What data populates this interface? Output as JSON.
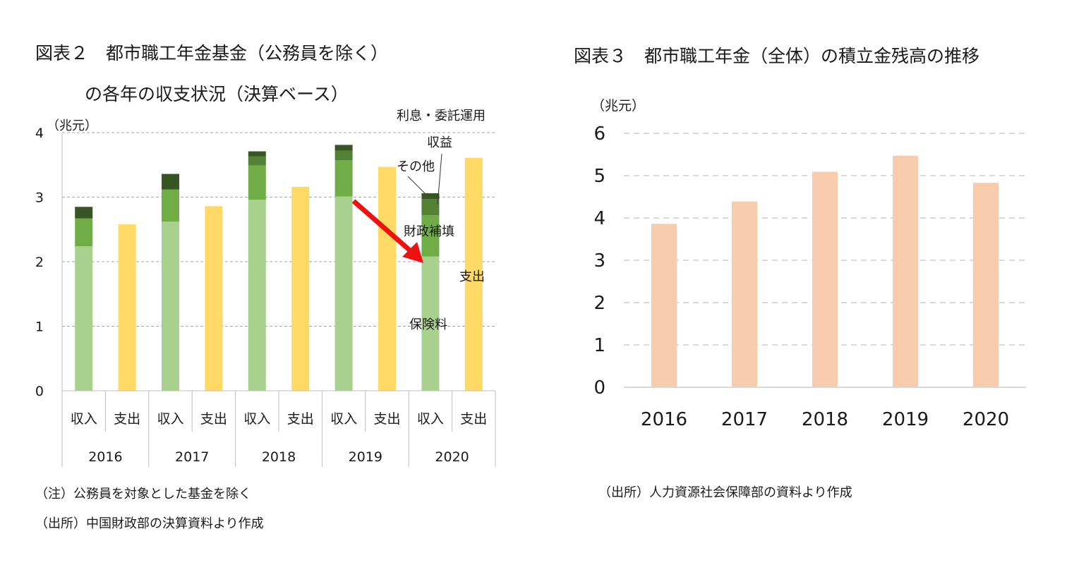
{
  "figure2": {
    "title_line1": "図表２　都市職工年金基金（公務員を除く）",
    "title_line2": "の各年の収支状況（決算ベース）",
    "notes": [
      "（注）公務員を対象とした基金を除く",
      "（出所）中国財政部の決算資料より作成"
    ],
    "annotations": {
      "interest": "利息・委託運用",
      "interest2": "収益",
      "other": "その他",
      "fiscal": "財政補填",
      "premium": "保険料",
      "expense": "支出"
    },
    "colors": {
      "premium": "#a9d18e",
      "fiscal": "#70ad47",
      "other": "#548235",
      "interest": "#375623",
      "expense": "#ffd966",
      "arrow": "#ee1111"
    }
  },
  "figure3": {
    "title": "図表３　都市職工年金（全体）の積立金残高の推移",
    "notes": [
      "（出所）人力資源社会保障部の資料より作成"
    ],
    "colors": {
      "bar": "#f8cbad"
    }
  },
  "chart_data": [
    {
      "type": "bar",
      "stacked": true,
      "title": "図表２　都市職工年金基金（公務員を除く）の各年の収支状況（決算ベース）",
      "ylabel": "（兆元）",
      "ylim": [
        0,
        4
      ],
      "yticks": [
        0,
        1,
        2,
        3,
        4
      ],
      "grid": true,
      "years": [
        "2016",
        "2017",
        "2018",
        "2019",
        "2020"
      ],
      "subcategories": [
        "収入",
        "支出"
      ],
      "series": [
        {
          "name": "保険料",
          "stack": "収入",
          "values": [
            2.24,
            2.62,
            2.96,
            3.01,
            2.08
          ]
        },
        {
          "name": "財政補填",
          "stack": "収入",
          "values": [
            0.43,
            0.5,
            0.53,
            0.56,
            0.64
          ]
        },
        {
          "name": "その他",
          "stack": "収入",
          "values": [
            0.0,
            0.0,
            0.14,
            0.15,
            0.25
          ]
        },
        {
          "name": "利息・委託運用収益",
          "stack": "収入",
          "values": [
            0.18,
            0.24,
            0.08,
            0.09,
            0.09
          ]
        },
        {
          "name": "支出",
          "stack": "支出",
          "values": [
            2.58,
            2.86,
            3.16,
            3.47,
            3.61
          ]
        }
      ]
    },
    {
      "type": "bar",
      "title": "図表３　都市職工年金（全体）の積立金残高の推移",
      "ylabel": "（兆元）",
      "ylim": [
        0,
        6
      ],
      "yticks": [
        0,
        1,
        2,
        3,
        4,
        5,
        6
      ],
      "grid": true,
      "categories": [
        "2016",
        "2017",
        "2018",
        "2019",
        "2020"
      ],
      "values": [
        3.86,
        4.39,
        5.09,
        5.47,
        4.83
      ]
    }
  ]
}
